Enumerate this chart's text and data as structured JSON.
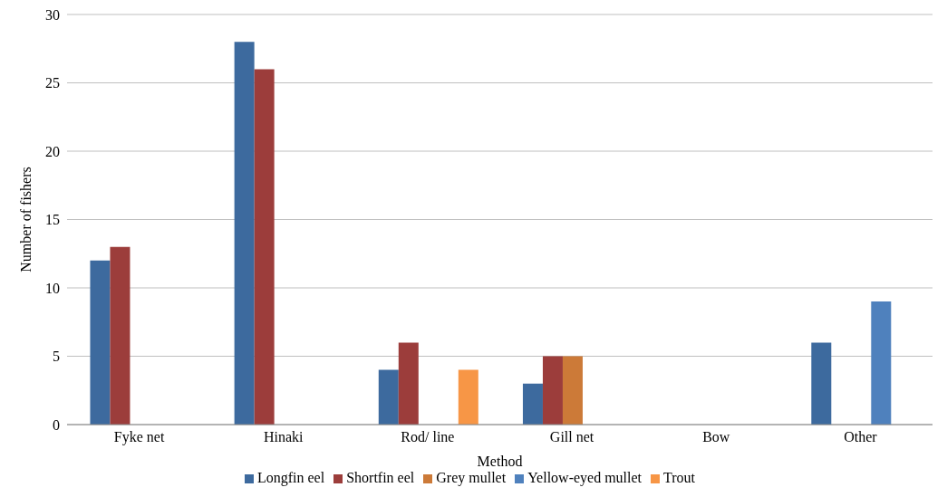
{
  "chart_data": {
    "type": "bar",
    "xlabel": "Method",
    "ylabel": "Number of fishers",
    "categories": [
      "Fyke net",
      "Hinaki",
      "Rod/ line",
      "Gill net",
      "Bow",
      "Other"
    ],
    "series": [
      {
        "name": "Longfin eel",
        "color": "#3d6a9e",
        "values": [
          12,
          28,
          4,
          3,
          0,
          6
        ]
      },
      {
        "name": "Shortfin eel",
        "color": "#9c3d3b",
        "values": [
          13,
          26,
          6,
          5,
          0,
          0
        ]
      },
      {
        "name": "Grey mullet",
        "color": "#cc7a38",
        "values": [
          0,
          0,
          0,
          5,
          0,
          0
        ]
      },
      {
        "name": "Yellow-eyed mullet",
        "color": "#4f81bd",
        "values": [
          0,
          0,
          0,
          0,
          0,
          9
        ]
      },
      {
        "name": "Trout",
        "color": "#f79646",
        "values": [
          0,
          0,
          4,
          0,
          0,
          0
        ]
      }
    ],
    "ylim": [
      0,
      30
    ],
    "yticks": [
      0,
      5,
      10,
      15,
      20,
      25,
      30
    ],
    "grid": "y",
    "legend": "bottom"
  }
}
